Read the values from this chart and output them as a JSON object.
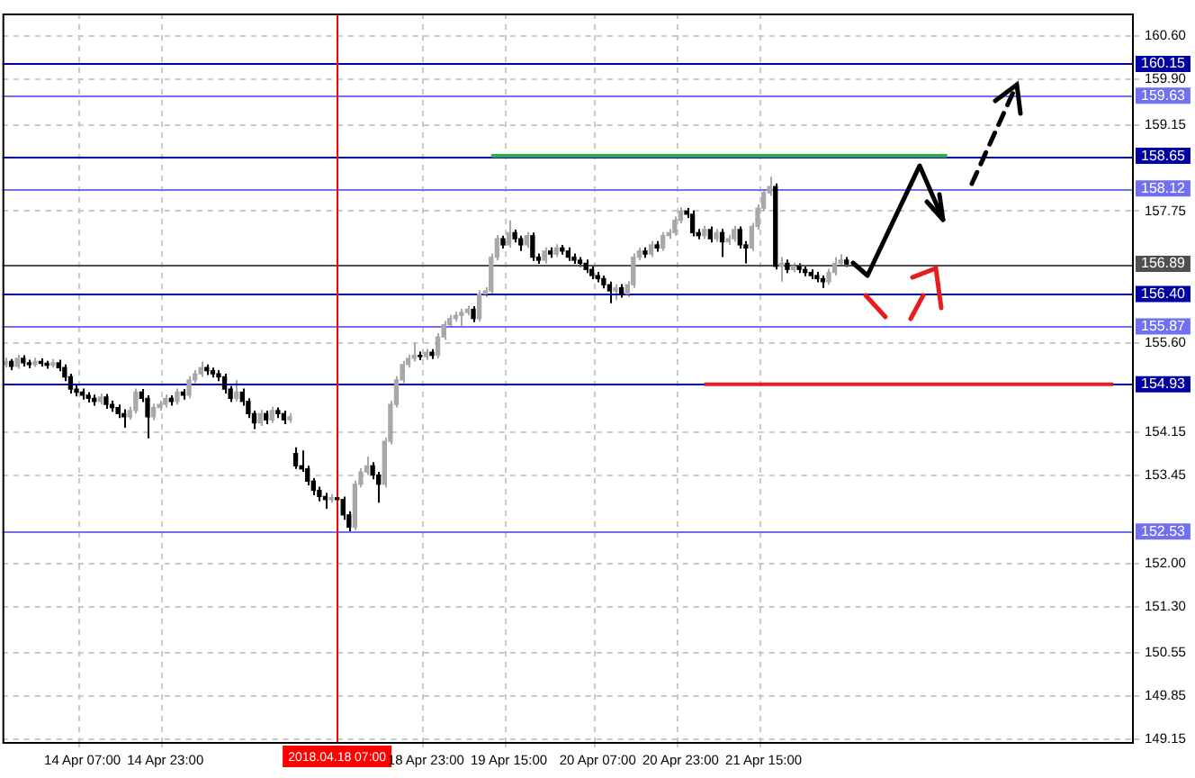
{
  "chart_data": {
    "type": "candlestick",
    "grid": true,
    "legend": false,
    "categories": [
      null,
      null,
      null,
      null,
      null,
      null,
      null,
      null,
      null,
      null,
      null,
      null,
      null,
      "14 Apr 07:00",
      null,
      null,
      null,
      null,
      null,
      null,
      null,
      null,
      null,
      null,
      null,
      null,
      null,
      "14 Apr 23:00",
      null,
      null,
      null,
      null,
      null,
      null,
      null,
      null,
      null,
      null,
      null,
      null,
      null,
      null,
      null,
      null,
      null,
      null,
      null,
      null,
      null,
      null,
      null,
      null,
      null,
      null,
      null,
      null,
      "2018.04.18 07:00",
      null,
      null,
      null,
      null,
      null,
      null,
      null,
      null,
      null,
      null,
      null,
      null,
      null,
      null,
      "18 Apr 23:00",
      null,
      null,
      null,
      null,
      null,
      null,
      null,
      null,
      null,
      null,
      null,
      null,
      null,
      "19 Apr 15:00",
      null,
      null,
      null,
      null,
      null,
      null,
      null,
      null,
      null,
      null,
      null,
      null,
      null,
      null,
      "20 Apr 07:00",
      null,
      null,
      null,
      null,
      null,
      null,
      null,
      null,
      null,
      null,
      null,
      null,
      null,
      "20 Apr 23:00",
      null,
      null,
      null,
      null,
      null,
      null,
      null,
      null,
      null,
      null,
      null,
      null,
      null,
      "21 Apr 15:00",
      null,
      null,
      null,
      null,
      null,
      null,
      null,
      null,
      null,
      null,
      null,
      null,
      null,
      null,
      null,
      null,
      null,
      null,
      null,
      null,
      null,
      null,
      null,
      null,
      null,
      null,
      null,
      null,
      null,
      null,
      null,
      null,
      null,
      null,
      null,
      null,
      null,
      null,
      null,
      null,
      null,
      null,
      null,
      null,
      null,
      null,
      null,
      null,
      null,
      null,
      null,
      null,
      null,
      null,
      null,
      null,
      null,
      null,
      null,
      null,
      null,
      null
    ],
    "ohlc": [
      [
        155.25,
        155.36,
        155.2,
        155.3
      ],
      [
        155.3,
        155.34,
        155.16,
        155.22
      ],
      [
        155.22,
        155.41,
        155.18,
        155.35
      ],
      [
        155.35,
        155.4,
        155.22,
        155.28
      ],
      [
        155.28,
        155.33,
        155.19,
        155.25
      ],
      [
        155.25,
        155.36,
        155.21,
        155.3
      ],
      [
        155.3,
        155.35,
        155.22,
        155.27
      ],
      [
        155.27,
        155.31,
        155.18,
        155.24
      ],
      [
        155.24,
        155.34,
        155.2,
        155.28
      ],
      [
        155.28,
        155.33,
        155.14,
        155.2
      ],
      [
        155.2,
        155.25,
        154.98,
        155.05
      ],
      [
        155.05,
        155.1,
        154.78,
        154.85
      ],
      [
        154.85,
        154.92,
        154.73,
        154.8
      ],
      [
        154.8,
        154.86,
        154.68,
        154.75
      ],
      [
        154.75,
        154.8,
        154.63,
        154.7
      ],
      [
        154.7,
        154.76,
        154.58,
        154.65
      ],
      [
        154.65,
        154.78,
        154.6,
        154.72
      ],
      [
        154.72,
        154.77,
        154.53,
        154.6
      ],
      [
        154.6,
        154.66,
        154.48,
        154.55
      ],
      [
        154.55,
        154.6,
        154.38,
        154.45
      ],
      [
        154.45,
        154.52,
        154.22,
        154.4
      ],
      [
        154.4,
        154.56,
        154.35,
        154.5
      ],
      [
        154.5,
        154.86,
        154.45,
        154.8
      ],
      [
        154.8,
        154.85,
        154.64,
        154.7
      ],
      [
        154.7,
        154.75,
        154.05,
        154.4
      ],
      [
        154.4,
        154.61,
        154.34,
        154.55
      ],
      [
        154.55,
        154.66,
        154.5,
        154.6
      ],
      [
        154.6,
        154.76,
        154.55,
        154.7
      ],
      [
        154.7,
        154.75,
        154.58,
        154.65
      ],
      [
        154.65,
        154.86,
        154.6,
        154.8
      ],
      [
        154.8,
        154.85,
        154.68,
        154.75
      ],
      [
        154.75,
        155.06,
        154.7,
        155.0
      ],
      [
        155.0,
        155.16,
        154.95,
        155.1
      ],
      [
        155.1,
        155.3,
        155.05,
        155.2
      ],
      [
        155.2,
        155.25,
        155.08,
        155.15
      ],
      [
        155.15,
        155.2,
        155.04,
        155.1
      ],
      [
        155.1,
        155.16,
        154.98,
        155.05
      ],
      [
        155.05,
        155.1,
        154.78,
        154.85
      ],
      [
        154.85,
        154.9,
        154.64,
        154.7
      ],
      [
        154.7,
        155.0,
        154.65,
        154.8
      ],
      [
        154.8,
        154.86,
        154.58,
        154.65
      ],
      [
        154.65,
        154.7,
        154.38,
        154.45
      ],
      [
        154.45,
        154.5,
        154.2,
        154.3
      ],
      [
        154.3,
        154.51,
        154.25,
        154.45
      ],
      [
        154.45,
        154.5,
        154.28,
        154.35
      ],
      [
        154.35,
        154.56,
        154.3,
        154.5
      ],
      [
        154.5,
        154.55,
        154.38,
        154.45
      ],
      [
        154.45,
        154.5,
        154.28,
        154.35
      ],
      [
        154.35,
        154.46,
        154.3,
        154.4
      ],
      [
        153.8,
        153.9,
        153.55,
        153.6
      ],
      [
        153.6,
        153.85,
        153.5,
        153.55
      ],
      [
        153.55,
        153.6,
        153.28,
        153.35
      ],
      [
        153.35,
        153.4,
        153.12,
        153.2
      ],
      [
        153.2,
        153.26,
        153.02,
        153.1
      ],
      [
        153.1,
        153.16,
        152.9,
        153.05
      ],
      [
        153.05,
        153.14,
        153.0,
        153.08
      ],
      [
        153.08,
        153.12,
        152.98,
        153.05
      ],
      [
        153.05,
        153.1,
        152.72,
        152.8
      ],
      [
        152.8,
        152.86,
        152.53,
        152.6
      ],
      [
        152.6,
        153.36,
        152.55,
        153.3
      ],
      [
        153.3,
        153.56,
        153.25,
        153.5
      ],
      [
        153.5,
        153.75,
        153.45,
        153.6
      ],
      [
        153.6,
        153.66,
        153.38,
        153.45
      ],
      [
        153.45,
        153.5,
        153.0,
        153.3
      ],
      [
        153.3,
        154.06,
        153.25,
        154.0
      ],
      [
        154.0,
        154.66,
        153.95,
        154.6
      ],
      [
        154.6,
        155.06,
        154.55,
        155.0
      ],
      [
        155.0,
        155.31,
        154.95,
        155.25
      ],
      [
        155.25,
        155.41,
        155.2,
        155.35
      ],
      [
        155.35,
        155.6,
        155.3,
        155.4
      ],
      [
        155.4,
        155.46,
        155.32,
        155.38
      ],
      [
        155.38,
        155.51,
        155.33,
        155.45
      ],
      [
        155.45,
        155.5,
        155.34,
        155.4
      ],
      [
        155.4,
        155.76,
        155.35,
        155.7
      ],
      [
        155.7,
        155.96,
        155.65,
        155.9
      ],
      [
        155.9,
        156.06,
        155.85,
        156.0
      ],
      [
        156.0,
        156.11,
        155.95,
        156.05
      ],
      [
        156.05,
        156.16,
        155.85,
        156.1
      ],
      [
        156.1,
        156.21,
        156.05,
        156.15
      ],
      [
        156.15,
        156.2,
        155.94,
        156.0
      ],
      [
        156.0,
        156.46,
        155.95,
        156.4
      ],
      [
        156.4,
        156.51,
        156.35,
        156.45
      ],
      [
        156.45,
        157.06,
        156.4,
        157.0
      ],
      [
        157.0,
        157.36,
        156.95,
        157.3
      ],
      [
        157.3,
        157.35,
        157.14,
        157.2
      ],
      [
        157.2,
        157.6,
        157.15,
        157.4
      ],
      [
        157.4,
        157.45,
        157.24,
        157.3
      ],
      [
        157.3,
        157.35,
        157.1,
        157.2
      ],
      [
        157.2,
        157.41,
        157.15,
        157.35
      ],
      [
        157.35,
        157.4,
        156.94,
        157.0
      ],
      [
        157.0,
        157.06,
        156.89,
        156.95
      ],
      [
        156.95,
        157.16,
        156.9,
        157.1
      ],
      [
        157.1,
        157.16,
        156.99,
        157.05
      ],
      [
        157.05,
        157.21,
        157.0,
        157.15
      ],
      [
        157.15,
        157.2,
        157.04,
        157.1
      ],
      [
        157.1,
        157.16,
        156.94,
        157.0
      ],
      [
        157.0,
        157.06,
        156.89,
        156.95
      ],
      [
        156.95,
        157.0,
        156.84,
        156.9
      ],
      [
        156.9,
        156.96,
        156.74,
        156.8
      ],
      [
        156.8,
        156.86,
        156.64,
        156.7
      ],
      [
        156.7,
        156.76,
        156.59,
        156.65
      ],
      [
        156.65,
        156.7,
        156.49,
        156.55
      ],
      [
        156.55,
        156.6,
        156.25,
        156.45
      ],
      [
        156.45,
        156.56,
        156.3,
        156.5
      ],
      [
        156.5,
        156.56,
        156.34,
        156.4
      ],
      [
        156.4,
        156.61,
        156.35,
        156.55
      ],
      [
        156.55,
        157.06,
        156.5,
        157.0
      ],
      [
        157.0,
        157.16,
        156.95,
        157.1
      ],
      [
        157.1,
        157.16,
        156.99,
        157.05
      ],
      [
        157.05,
        157.26,
        157.0,
        157.2
      ],
      [
        157.2,
        157.26,
        157.09,
        157.15
      ],
      [
        157.15,
        157.41,
        157.1,
        157.35
      ],
      [
        157.35,
        157.46,
        157.3,
        157.4
      ],
      [
        157.4,
        157.66,
        157.35,
        157.6
      ],
      [
        157.6,
        157.81,
        157.55,
        157.75
      ],
      [
        157.75,
        157.8,
        157.64,
        157.7
      ],
      [
        157.7,
        157.76,
        157.34,
        157.4
      ],
      [
        157.4,
        157.46,
        157.29,
        157.35
      ],
      [
        157.35,
        157.51,
        157.3,
        157.45
      ],
      [
        157.45,
        157.5,
        157.24,
        157.3
      ],
      [
        157.3,
        157.46,
        157.25,
        157.4
      ],
      [
        157.4,
        157.46,
        157.0,
        157.25
      ],
      [
        157.25,
        157.36,
        157.2,
        157.3
      ],
      [
        157.3,
        157.51,
        157.25,
        157.45
      ],
      [
        157.45,
        157.5,
        157.14,
        157.2
      ],
      [
        157.2,
        157.26,
        156.9,
        157.15
      ],
      [
        157.15,
        157.56,
        157.1,
        157.5
      ],
      [
        157.5,
        157.86,
        157.45,
        157.8
      ],
      [
        157.8,
        158.11,
        157.75,
        158.05
      ],
      [
        158.05,
        158.31,
        158.0,
        158.15
      ],
      [
        158.15,
        158.2,
        156.8,
        156.85
      ],
      [
        156.85,
        157.0,
        156.6,
        156.9
      ],
      [
        156.9,
        156.96,
        156.74,
        156.8
      ],
      [
        156.8,
        156.91,
        156.75,
        156.85
      ],
      [
        156.85,
        156.9,
        156.74,
        156.8
      ],
      [
        156.8,
        156.86,
        156.69,
        156.75
      ],
      [
        156.75,
        156.8,
        156.64,
        156.7
      ],
      [
        156.7,
        156.76,
        156.59,
        156.65
      ],
      [
        156.65,
        156.7,
        156.5,
        156.6
      ],
      [
        156.6,
        156.81,
        156.55,
        156.75
      ],
      [
        156.75,
        157.0,
        156.7,
        156.9
      ],
      [
        156.9,
        157.05,
        156.85,
        156.95
      ],
      [
        156.95,
        157.0,
        156.84,
        156.89
      ],
      null,
      null,
      null,
      null,
      null,
      null,
      null,
      null,
      null,
      null,
      null,
      null,
      null,
      null,
      null,
      null,
      null,
      null,
      null,
      null,
      null,
      null,
      null,
      null,
      null,
      null,
      null,
      null,
      null,
      null,
      null,
      null,
      null,
      null,
      null,
      null,
      null,
      null,
      null,
      null,
      null,
      null,
      null,
      null,
      null,
      null,
      null,
      null
    ],
    "series": [
      {
        "type": "line",
        "color": "#22b14c",
        "values": [
          null,
          null,
          null,
          null,
          null,
          null,
          null,
          null,
          null,
          null,
          null,
          null,
          null,
          null,
          null,
          null,
          null,
          null,
          null,
          null,
          null,
          null,
          null,
          null,
          null,
          null,
          null,
          null,
          null,
          null,
          null,
          null,
          null,
          null,
          null,
          null,
          null,
          null,
          null,
          null,
          null,
          null,
          null,
          null,
          null,
          null,
          null,
          null,
          null,
          null,
          null,
          null,
          null,
          null,
          null,
          null,
          null,
          null,
          null,
          null,
          null,
          null,
          null,
          null,
          null,
          null,
          null,
          null,
          null,
          null,
          null,
          null,
          null,
          null,
          null,
          null,
          null,
          null,
          null,
          null,
          null,
          null,
          158.65,
          158.65,
          158.65,
          158.65,
          158.65,
          158.65,
          158.65,
          158.65,
          158.65,
          158.65,
          158.65,
          158.65,
          158.65,
          158.65,
          158.65,
          158.65,
          158.65,
          158.65,
          158.65,
          158.65,
          158.65,
          158.65,
          158.65,
          158.65,
          158.65,
          158.65,
          158.65,
          158.65,
          158.65,
          158.65,
          158.65,
          158.65,
          158.65,
          158.65,
          158.65,
          158.65,
          158.65,
          158.65,
          158.65,
          158.65,
          158.65,
          158.65,
          158.65,
          158.65,
          158.65,
          158.65,
          158.65,
          158.65,
          158.65,
          158.65,
          158.65,
          158.65,
          158.65,
          158.65,
          158.65,
          158.65,
          158.65,
          158.65,
          158.65,
          158.65,
          158.65,
          158.65,
          158.65,
          158.65,
          158.65,
          158.65,
          158.65,
          158.65,
          158.65,
          158.65,
          158.65,
          158.65,
          158.65,
          158.65,
          158.65,
          158.65,
          158.65,
          158.65,
          null,
          null,
          null,
          null,
          null,
          null,
          null,
          null,
          null,
          null,
          null,
          null,
          null,
          null,
          null,
          null,
          null,
          null,
          null,
          null,
          null,
          null,
          null,
          null,
          null,
          null,
          null,
          null,
          null,
          null,
          null
        ]
      },
      {
        "type": "line",
        "color": "#e81c1c",
        "values": [
          null,
          null,
          null,
          null,
          null,
          null,
          null,
          null,
          null,
          null,
          null,
          null,
          null,
          null,
          null,
          null,
          null,
          null,
          null,
          null,
          null,
          null,
          null,
          null,
          null,
          null,
          null,
          null,
          null,
          null,
          null,
          null,
          null,
          null,
          null,
          null,
          null,
          null,
          null,
          null,
          null,
          null,
          null,
          null,
          null,
          null,
          null,
          null,
          null,
          null,
          null,
          null,
          null,
          null,
          null,
          null,
          null,
          null,
          null,
          null,
          null,
          null,
          null,
          null,
          null,
          null,
          null,
          null,
          null,
          null,
          null,
          null,
          null,
          null,
          null,
          null,
          null,
          null,
          null,
          null,
          null,
          null,
          null,
          null,
          null,
          null,
          null,
          null,
          null,
          null,
          null,
          null,
          null,
          null,
          null,
          null,
          null,
          null,
          null,
          null,
          null,
          null,
          null,
          null,
          null,
          null,
          null,
          null,
          null,
          null,
          null,
          null,
          null,
          null,
          null,
          null,
          null,
          null,
          154.93,
          154.93,
          154.93,
          154.93,
          154.93,
          154.93,
          154.93,
          154.93,
          154.93,
          154.93,
          154.93,
          154.93,
          154.93,
          154.93,
          154.93,
          154.93,
          154.93,
          154.93,
          154.93,
          154.93,
          154.93,
          154.93,
          154.93,
          154.93,
          154.93,
          154.93,
          154.93,
          154.93,
          154.93,
          154.93,
          154.93,
          154.93,
          154.93,
          154.93,
          154.93,
          154.93,
          154.93,
          154.93,
          154.93,
          154.93,
          154.93,
          154.93,
          154.93,
          154.93,
          154.93,
          154.93,
          154.93,
          154.93,
          154.93,
          154.93,
          154.93,
          154.93,
          154.93,
          154.93,
          154.93,
          154.93,
          154.93,
          154.93,
          154.93,
          154.93,
          154.93,
          154.93,
          154.93,
          154.93,
          154.93,
          154.93,
          154.93,
          154.93,
          154.93,
          154.93,
          null,
          null,
          null
        ]
      }
    ],
    "ylim": [
      149.1,
      160.97
    ],
    "yticks": [
      {
        "value": 160.6,
        "label": "160.60"
      },
      {
        "value": 159.9,
        "label": "159.90"
      },
      {
        "value": 159.15,
        "label": "159.15"
      },
      {
        "value": 157.75,
        "label": "157.75"
      },
      {
        "value": 155.6,
        "label": "155.60"
      },
      {
        "value": 154.15,
        "label": "154.15"
      },
      {
        "value": 153.45,
        "label": "153.45"
      },
      {
        "value": 152,
        "label": "152.00"
      },
      {
        "value": 151.3,
        "label": "151.30"
      },
      {
        "value": 150.55,
        "label": "150.55"
      },
      {
        "value": 149.85,
        "label": "149.85"
      },
      {
        "value": 149.15,
        "label": "149.15"
      }
    ],
    "ref_lines": [
      {
        "axis": "y",
        "value": 160.15,
        "label": "160.15",
        "color": "#0000a0"
      },
      {
        "axis": "y",
        "value": 159.63,
        "label": "159.63",
        "color": "#7070f0"
      },
      {
        "axis": "y",
        "value": 158.65,
        "label": "158.65",
        "color": "#0000a0"
      },
      {
        "axis": "y",
        "value": 158.12,
        "label": "158.12",
        "color": "#7070f0"
      },
      {
        "axis": "y",
        "value": 156.89,
        "label": "156.89",
        "color": "#505050"
      },
      {
        "axis": "y",
        "value": 156.4,
        "label": "156.40",
        "color": "#0000a0"
      },
      {
        "axis": "y",
        "value": 155.87,
        "label": "155.87",
        "color": "#7070f0"
      },
      {
        "axis": "y",
        "value": 154.93,
        "label": "154.93",
        "color": "#0000a0"
      },
      {
        "axis": "y",
        "value": 152.53,
        "label": "152.53",
        "color": "#7070f0"
      },
      {
        "axis": "x",
        "value": "2018.04.18 07:00",
        "color": "#ff0000"
      }
    ]
  }
}
